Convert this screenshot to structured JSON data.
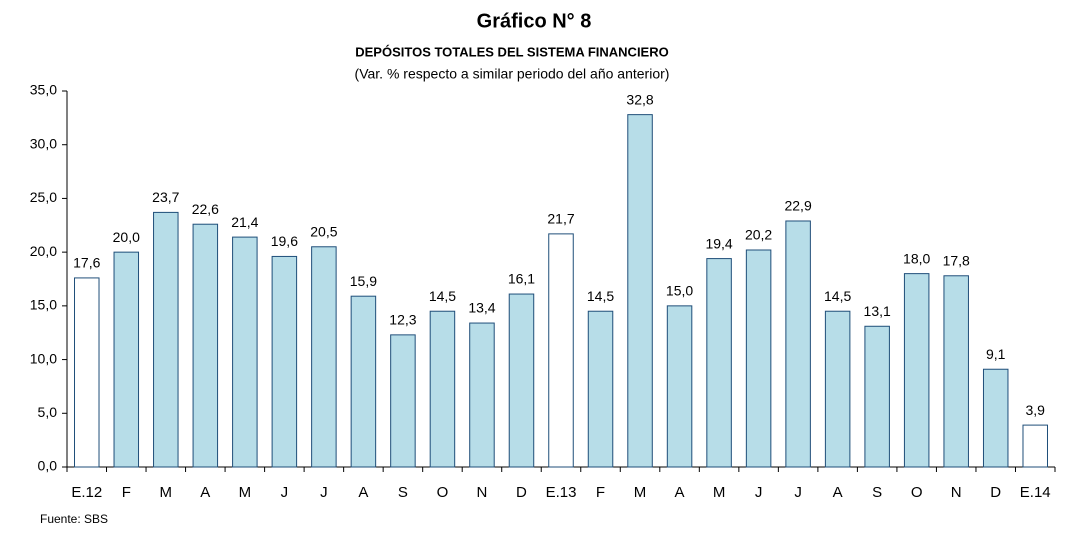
{
  "chart_data": {
    "type": "bar",
    "title": "Gráfico N° 8",
    "subtitle": "DEPÓSITOS TOTALES DEL SISTEMA FINANCIERO",
    "note": "(Var. % respecto a similar periodo del año anterior)",
    "source": "Fuente: SBS",
    "categories": [
      "E.12",
      "F",
      "M",
      "A",
      "M",
      "J",
      "J",
      "A",
      "S",
      "O",
      "N",
      "D",
      "E.13",
      "F",
      "M",
      "A",
      "M",
      "J",
      "J",
      "A",
      "S",
      "O",
      "N",
      "D",
      "E.14"
    ],
    "values": [
      17.6,
      20.0,
      23.7,
      22.6,
      21.4,
      19.6,
      20.5,
      15.9,
      12.3,
      14.5,
      13.4,
      16.1,
      21.7,
      14.5,
      32.8,
      15.0,
      19.4,
      20.2,
      22.9,
      14.5,
      13.1,
      18.0,
      17.8,
      9.1,
      3.9
    ],
    "value_labels": [
      "17,6",
      "20,0",
      "23,7",
      "22,6",
      "21,4",
      "19,6",
      "20,5",
      "15,9",
      "12,3",
      "14,5",
      "13,4",
      "16,1",
      "21,7",
      "14,5",
      "32,8",
      "15,0",
      "19,4",
      "20,2",
      "22,9",
      "14,5",
      "13,1",
      "18,0",
      "17,8",
      "9,1",
      "3,9"
    ],
    "colors": [
      "#ffffff",
      "#b7dde8",
      "#b7dde8",
      "#b7dde8",
      "#b7dde8",
      "#b7dde8",
      "#b7dde8",
      "#b7dde8",
      "#b7dde8",
      "#b7dde8",
      "#b7dde8",
      "#b7dde8",
      "#ffffff",
      "#b7dde8",
      "#b7dde8",
      "#b7dde8",
      "#b7dde8",
      "#b7dde8",
      "#b7dde8",
      "#b7dde8",
      "#b7dde8",
      "#b7dde8",
      "#b7dde8",
      "#b7dde8",
      "#ffffff"
    ],
    "border_color": "#1f4e79",
    "ylim": [
      0,
      35
    ],
    "yticks": [
      {
        "value": 0,
        "label": "0,0"
      },
      {
        "value": 5,
        "label": "5,0"
      },
      {
        "value": 10,
        "label": "10,0"
      },
      {
        "value": 15,
        "label": "15,0"
      },
      {
        "value": 20,
        "label": "20,0"
      },
      {
        "value": 25,
        "label": "25,0"
      },
      {
        "value": 30,
        "label": "30,0"
      },
      {
        "value": 35,
        "label": "35,0"
      }
    ],
    "grid": false
  }
}
